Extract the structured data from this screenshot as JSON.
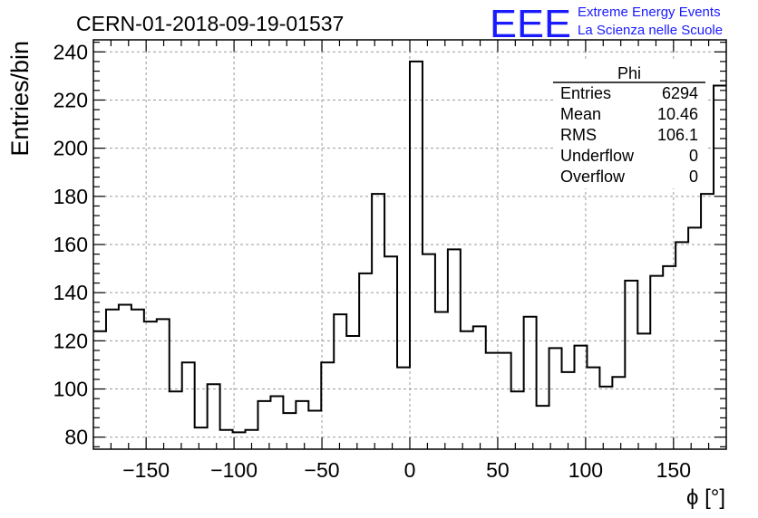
{
  "chart_data": {
    "type": "bar",
    "title": "CERN-01-2018-09-19-01537",
    "xlabel": "ϕ [°]",
    "ylabel": "Entries/bin",
    "xlim": [
      -180,
      180
    ],
    "ylim": [
      75,
      245
    ],
    "grid": true,
    "bin_width": 7.2,
    "x_ticks": [
      -150,
      -100,
      -50,
      0,
      50,
      100,
      150
    ],
    "x_tick_labels": [
      "−150",
      "−100",
      "−50",
      "0",
      "50",
      "100",
      "150"
    ],
    "y_ticks": [
      80,
      100,
      120,
      140,
      160,
      180,
      200,
      220,
      240
    ],
    "y_tick_labels": [
      "80",
      "100",
      "120",
      "140",
      "160",
      "180",
      "200",
      "220",
      "240"
    ],
    "series": [
      {
        "values": [
          124,
          133,
          135,
          133,
          128,
          129,
          99,
          111,
          84,
          102,
          83,
          82,
          83,
          95,
          97,
          90,
          95,
          91,
          111,
          131,
          122,
          148,
          181,
          155,
          109,
          236,
          156,
          132,
          158,
          124,
          126,
          115,
          115,
          99,
          130,
          93,
          117,
          107,
          118,
          109,
          101,
          105,
          145,
          123,
          147,
          151,
          161,
          167,
          181,
          226
        ]
      }
    ],
    "stats_box": {
      "title": "Phi",
      "rows": [
        {
          "label": "Entries",
          "value": "6294"
        },
        {
          "label": "Mean",
          "value": "10.46"
        },
        {
          "label": "RMS",
          "value": "106.1"
        },
        {
          "label": "Underflow",
          "value": "0"
        },
        {
          "label": "Overflow",
          "value": "0"
        }
      ],
      "placement": "top-right"
    }
  },
  "logo": {
    "mark": "EEE",
    "line1": "Extreme Energy Events",
    "line2": "La Scienza nelle Scuole",
    "color": "#1a1aff"
  },
  "colors": {
    "line": "#000000",
    "grid": "#9a9a9a"
  }
}
